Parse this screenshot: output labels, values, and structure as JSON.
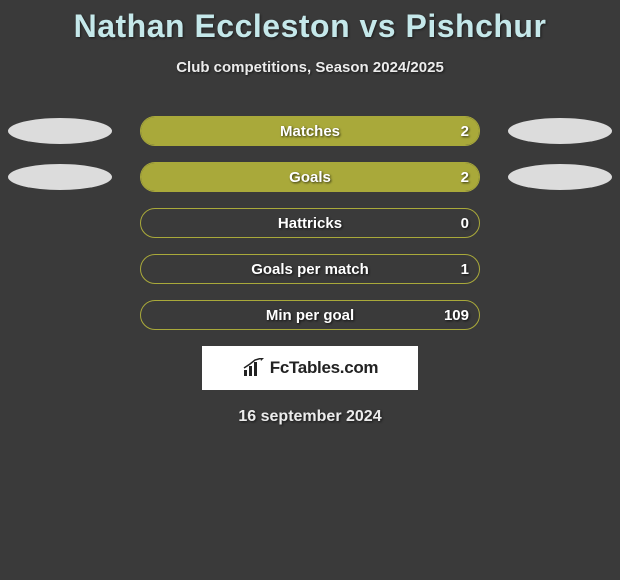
{
  "title": "Nathan Eccleston vs Pishchur",
  "subtitle": "Club competitions, Season 2024/2025",
  "date": "16 september 2024",
  "logo_text": "FcTables.com",
  "colors": {
    "background": "#3a3a3a",
    "title": "#c5e8ea",
    "subtitle": "#ececec",
    "bar_fill": "#a9a93a",
    "bar_border": "#a9a93a",
    "left_ellipse": "#dcdcdc",
    "right_ellipse": "#dcdcdc",
    "bar_text": "#ffffff",
    "logo_bg": "#ffffff",
    "logo_text": "#222222"
  },
  "bars": [
    {
      "label": "Matches",
      "value": "2",
      "fill_pct": 100,
      "show_left_ellipse": true,
      "show_right_ellipse": true
    },
    {
      "label": "Goals",
      "value": "2",
      "fill_pct": 100,
      "show_left_ellipse": true,
      "show_right_ellipse": true
    },
    {
      "label": "Hattricks",
      "value": "0",
      "fill_pct": 0,
      "show_left_ellipse": false,
      "show_right_ellipse": false
    },
    {
      "label": "Goals per match",
      "value": "1",
      "fill_pct": 0,
      "show_left_ellipse": false,
      "show_right_ellipse": false
    },
    {
      "label": "Min per goal",
      "value": "109",
      "fill_pct": 0,
      "show_left_ellipse": false,
      "show_right_ellipse": false
    }
  ]
}
